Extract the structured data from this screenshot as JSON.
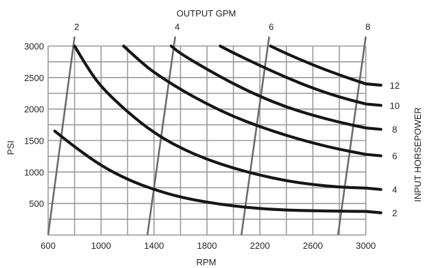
{
  "chart_data": {
    "type": "line",
    "title": "",
    "xlabel": "RPM",
    "ylabel": "PSI",
    "top_axis_label": "OUTPUT GPM",
    "right_axis_label": "INPUT HORSEPOWER",
    "xlim": [
      600,
      3000
    ],
    "ylim": [
      0,
      3000
    ],
    "x_ticks": [
      600,
      1000,
      1400,
      1800,
      2200,
      2600,
      3000
    ],
    "x_tick_labels": [
      "600",
      "1000",
      "1400",
      "1800",
      "2200",
      "2600",
      "3000"
    ],
    "y_ticks": [
      500,
      1000,
      1500,
      2000,
      2500,
      3000
    ],
    "y_tick_labels": [
      "500",
      "1000",
      "1500",
      "2000",
      "2500",
      "3000"
    ],
    "grid": true,
    "horsepower_curves": [
      {
        "label": "2",
        "points": [
          [
            650,
            1650
          ],
          [
            800,
            1400
          ],
          [
            1000,
            1100
          ],
          [
            1200,
            880
          ],
          [
            1400,
            720
          ],
          [
            1600,
            600
          ],
          [
            1800,
            520
          ],
          [
            2000,
            460
          ],
          [
            2200,
            420
          ],
          [
            2400,
            395
          ],
          [
            2600,
            385
          ],
          [
            2800,
            378
          ],
          [
            3000,
            375
          ]
        ]
      },
      {
        "label": "4",
        "points": [
          [
            800,
            3000
          ],
          [
            900,
            2650
          ],
          [
            1000,
            2350
          ],
          [
            1200,
            1950
          ],
          [
            1400,
            1620
          ],
          [
            1600,
            1380
          ],
          [
            1800,
            1200
          ],
          [
            2000,
            1060
          ],
          [
            2200,
            950
          ],
          [
            2400,
            860
          ],
          [
            2600,
            800
          ],
          [
            2800,
            760
          ],
          [
            3000,
            745
          ]
        ]
      },
      {
        "label": "6",
        "points": [
          [
            1170,
            3000
          ],
          [
            1300,
            2750
          ],
          [
            1400,
            2580
          ],
          [
            1600,
            2310
          ],
          [
            1800,
            2080
          ],
          [
            2000,
            1880
          ],
          [
            2200,
            1720
          ],
          [
            2400,
            1580
          ],
          [
            2600,
            1460
          ],
          [
            2800,
            1360
          ],
          [
            3000,
            1280
          ]
        ]
      },
      {
        "label": "8",
        "points": [
          [
            1530,
            3000
          ],
          [
            1600,
            2880
          ],
          [
            1800,
            2630
          ],
          [
            2000,
            2400
          ],
          [
            2200,
            2200
          ],
          [
            2400,
            2030
          ],
          [
            2600,
            1900
          ],
          [
            2800,
            1790
          ],
          [
            3000,
            1700
          ]
        ]
      },
      {
        "label": "10",
        "points": [
          [
            1900,
            3000
          ],
          [
            2000,
            2890
          ],
          [
            2200,
            2690
          ],
          [
            2400,
            2500
          ],
          [
            2600,
            2330
          ],
          [
            2800,
            2190
          ],
          [
            3000,
            2080
          ]
        ]
      },
      {
        "label": "12",
        "points": [
          [
            2280,
            3000
          ],
          [
            2400,
            2880
          ],
          [
            2600,
            2700
          ],
          [
            2800,
            2540
          ],
          [
            3000,
            2400
          ]
        ]
      }
    ],
    "gpm_lines": [
      {
        "label": "2",
        "points": [
          [
            600,
            0
          ],
          [
            800,
            3150
          ]
        ]
      },
      {
        "label": "4",
        "points": [
          [
            1350,
            0
          ],
          [
            1560,
            3150
          ]
        ]
      },
      {
        "label": "6",
        "points": [
          [
            2060,
            0
          ],
          [
            2270,
            3150
          ]
        ]
      },
      {
        "label": "8",
        "points": [
          [
            2790,
            0
          ],
          [
            3000,
            3150
          ]
        ]
      }
    ]
  }
}
